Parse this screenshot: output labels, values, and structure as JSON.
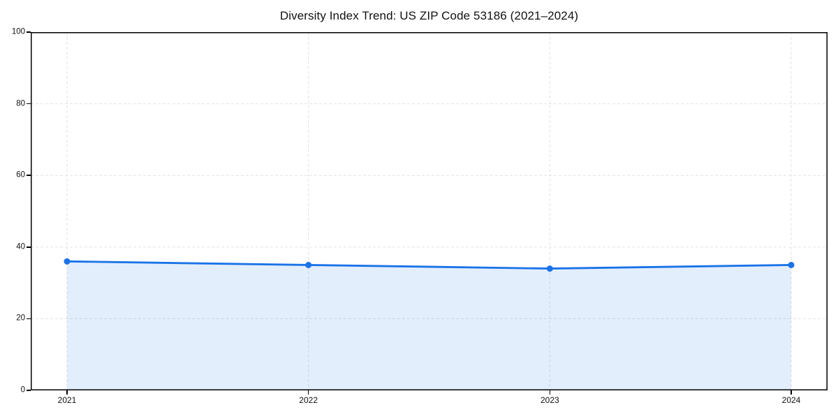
{
  "chart_data": {
    "type": "area",
    "title": "Diversity Index Trend: US ZIP Code 53186 (2021–2024)",
    "x": [
      "2021",
      "2022",
      "2023",
      "2024"
    ],
    "values": [
      36,
      35,
      34,
      35
    ],
    "xlabel": "",
    "ylabel": "",
    "ylim": [
      0,
      100
    ],
    "yticks": [
      0,
      20,
      40,
      60,
      80,
      100
    ],
    "grid": "dashed",
    "legend": "none",
    "colors": {
      "line": "#1a73e8",
      "marker": "#1a73e8",
      "fill": "rgba(26,115,232,0.12)",
      "grid": "#e2e2e2",
      "spine": "#000000",
      "text": "#111111",
      "background": "#ffffff"
    }
  }
}
